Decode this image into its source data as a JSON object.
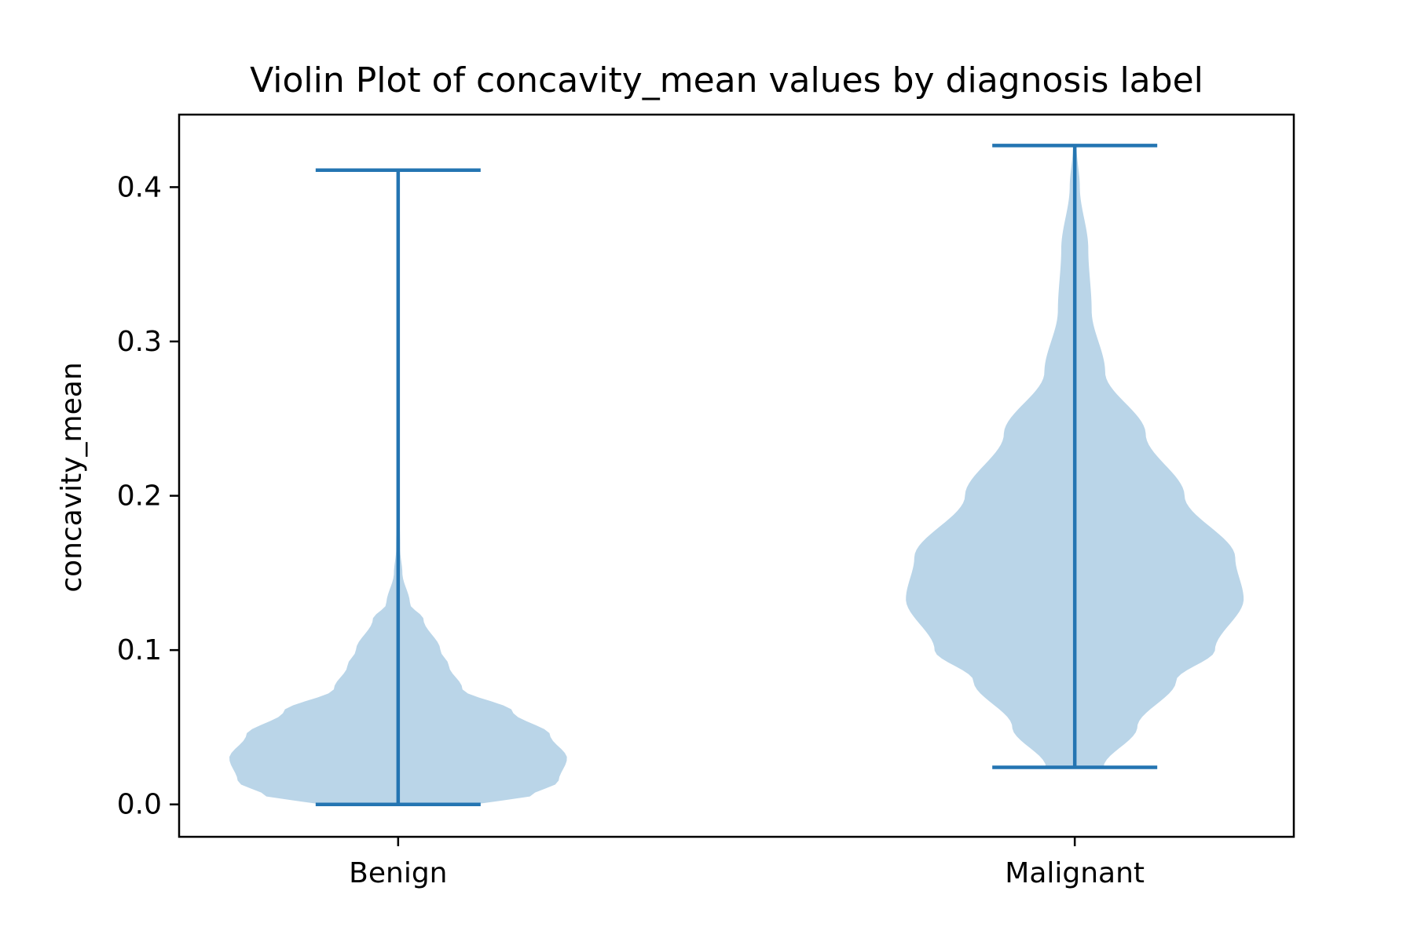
{
  "chart_data": {
    "type": "violin",
    "title": "Violin Plot of concavity_mean values by diagnosis label",
    "xlabel": "",
    "ylabel": "concavity_mean",
    "categories": [
      "Benign",
      "Malignant"
    ],
    "ylim": [
      -0.021,
      0.447
    ],
    "y_ticks": [
      0.0,
      0.1,
      0.2,
      0.3,
      0.4
    ],
    "y_tick_labels": [
      "0.0",
      "0.1",
      "0.2",
      "0.3",
      "0.4"
    ],
    "grid": false,
    "legend": "none",
    "colors": {
      "body": "#bad5e8",
      "lines": "#2475b2"
    },
    "violins": [
      {
        "category": "Benign",
        "min": 0.0,
        "max": 0.411,
        "density": [
          [
            0.0,
            0.45
          ],
          [
            0.005,
            0.78
          ],
          [
            0.015,
            0.95
          ],
          [
            0.03,
            1.0
          ],
          [
            0.045,
            0.9
          ],
          [
            0.06,
            0.68
          ],
          [
            0.075,
            0.38
          ],
          [
            0.09,
            0.3
          ],
          [
            0.1,
            0.25
          ],
          [
            0.12,
            0.15
          ],
          [
            0.13,
            0.07
          ],
          [
            0.15,
            0.025
          ],
          [
            0.165,
            0.012
          ],
          [
            0.2,
            0.006
          ],
          [
            0.3,
            0.003
          ],
          [
            0.411,
            0.002
          ]
        ]
      },
      {
        "category": "Malignant",
        "min": 0.024,
        "max": 0.427,
        "density": [
          [
            0.024,
            0.17
          ],
          [
            0.05,
            0.37
          ],
          [
            0.08,
            0.6
          ],
          [
            0.1,
            0.83
          ],
          [
            0.133,
            1.0
          ],
          [
            0.16,
            0.95
          ],
          [
            0.2,
            0.65
          ],
          [
            0.24,
            0.42
          ],
          [
            0.28,
            0.18
          ],
          [
            0.32,
            0.1
          ],
          [
            0.36,
            0.08
          ],
          [
            0.4,
            0.03
          ],
          [
            0.427,
            0.01
          ]
        ]
      }
    ]
  }
}
